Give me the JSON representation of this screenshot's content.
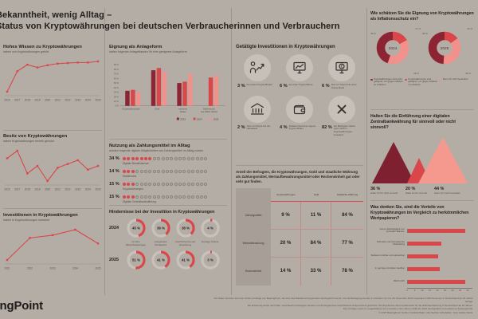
{
  "app": {
    "bg": "#b4ada6",
    "accent": "#d9474b",
    "dark_red": "#8d2433",
    "light_red": "#f0918b"
  },
  "header": {
    "title_line1": "Bekanntheit, wenig Alltag –",
    "title_line2": "Status von Kryptowährungen bei deutschen Verbraucherinnen und Verbrauchern"
  },
  "sections": {
    "wissen": {
      "title": "Hohes Wissen zu Kryptowährungen",
      "subtitle": "haben von Kryptowährungen gehört"
    },
    "besitz": {
      "title": "Besitz von Kryptowährungen",
      "subtitle": "haben Kryptowährungen bereits genutzt"
    },
    "invest": {
      "title": "Investitionen in Kryptowährungen",
      "subtitle": "haben in Kryptowährungen investiert"
    },
    "eignung": {
      "title": "Eignung als Anlageform",
      "subtitle": "halten folgende Anlageklassen für eine geeignete Anlageform"
    },
    "nutzung": {
      "title": "Nutzung als Zahlungsmittel im Alltag",
      "subtitle": "würden folgende digitale Möglichkeiten als Zahlungsmittel im Alltag nutzen"
    },
    "hindernisse": {
      "title": "Hindernisse bei der Investition in Kryptowährungen"
    },
    "kanaele": {
      "title": "Getätigte Investitionen in Kryptowährungen",
      "items": [
        {
          "pct": "3 %",
          "caption": "bei einem Krypto-Broker",
          "icon": "broker-chart-icon"
        },
        {
          "pct": "6 %",
          "caption": "bei einer Krypto-Börse",
          "icon": "exchange-monitor-icon"
        },
        {
          "pct": "6 %",
          "caption": "über ein Depot bei einer Online-Bank",
          "icon": "online-bank-coin-icon"
        },
        {
          "pct": "2 %",
          "caption": "über ein Depot bei der Hausbank",
          "icon": "bank-building-icon"
        },
        {
          "pct": "4 %",
          "caption": "direkter Kauf über eigene Krypto-Wallet",
          "icon": "wallet-icon"
        },
        {
          "pct": "82 %",
          "caption": "der Befragten haben noch nicht in Kryptowährungen investiert",
          "icon": "x-mark-icon"
        }
      ]
    },
    "bewertung": {
      "intro": "Anteil der Befragten, die Kryptowährungen, Gold und staatliche Währung als Zahlungsmittel, Wertaufbewahrungsmittel oder Recheneinheit gut oder sehr gut finden.",
      "columns": [
        "Kryptowährungen",
        "Gold",
        "Staatliche Währung"
      ],
      "rows": [
        {
          "label": "Zahlungsmittel",
          "values": [
            "9 %",
            "11 %",
            "84 %"
          ]
        },
        {
          "label": "Wertaufbewahrung",
          "values": [
            "20 %",
            "84 %",
            "77 %"
          ]
        },
        {
          "label": "Recheneinheit",
          "values": [
            "14 %",
            "33 %",
            "78 %"
          ]
        }
      ]
    },
    "inflation": {
      "title": "Wie schätzen Sie die Eignung von Kryptowährungen als Inflationsschutz ein?",
      "legend": [
        "Kryptowährungen sind nicht geeignet, um gegen Inflation zu schützen",
        "Kryptowährungen sind geeignet, um gegen Inflation zu schützen",
        "Kann ich nicht beurteilen"
      ]
    },
    "cbdc": {
      "title": "Halten Sie die Einführung einer digitalen Zentralbankwährung für sinnvoll oder nicht sinnvoll?",
      "items": [
        {
          "pct": "36 %",
          "label": "Halte ich für nicht sinnvoll"
        },
        {
          "pct": "20 %",
          "label": "Halte ich für sinnvoll"
        },
        {
          "pct": "44 %",
          "label": "Kann ich nicht beurteilen"
        }
      ]
    },
    "vorteile": {
      "title": "Was denken Sie, sind die Vorteile von Kryptowährungen im Vergleich zu herkömmlichen Wertpapieren?"
    }
  },
  "footer": {
    "logo": "BearingPoint",
    "note_lines": [
      "Die Daten beruhen auf einer Online-Umfrage von BearingPoint, die über das Marktforschungsinstitut durchgeführt wurde. Für die Befragung wurden im Zeitraum 21. bis 28. November 2025 insgesamt 2.000 Personen in Deutschland ab 18 Jahren befragt.",
      "Die Erhebung wurde nach Alter, Geschlecht und Region quotiert und die Ergebnisse anschließend entsprechend gewichtet. Die Ergebnisse sind repräsentativ für die Wohnbevölkerung in Deutschland ab 18 Jahren.",
      "Die Umfrage wurde in vergleichbarer Form bereits in den Jahren 2016 bis 2024 durchgeführt und erlaubt so Zeitvergleiche.",
      "© 2025 BearingPoint GmbH, Frankfurt/Main. Alle Rechte vorbehalten. Foto: Adobe Stock."
    ]
  },
  "chart_data": [
    {
      "id": "wissen_line",
      "type": "line",
      "title": "Hohes Wissen zu Kryptowährungen",
      "unit": "%",
      "x": [
        2016,
        2017,
        2018,
        2019,
        2020,
        2021,
        2022,
        2023,
        2024,
        2025
      ],
      "values": [
        35,
        72,
        84,
        79,
        83,
        86,
        87,
        88,
        88,
        90
      ]
    },
    {
      "id": "besitz_line",
      "type": "line",
      "title": "Besitz von Kryptowährungen",
      "unit": "%",
      "x": [
        2016,
        2017,
        2018,
        2019,
        2020,
        2021,
        2022,
        2023,
        2024,
        2025
      ],
      "values": [
        23,
        27,
        15,
        19,
        11,
        18,
        20,
        22,
        17,
        19
      ]
    },
    {
      "id": "invest_line",
      "type": "line",
      "title": "Investitionen in Kryptowährungen",
      "unit": "%",
      "x": [
        2021,
        2022,
        2023,
        2024,
        2025
      ],
      "values": [
        8,
        12,
        12.5,
        13.5,
        11
      ]
    },
    {
      "id": "eignung_bars",
      "type": "bar",
      "title": "Eignung als Anlageform",
      "ylim": [
        0,
        90
      ],
      "unit": "%",
      "categories": [
        "Kryptowährungen",
        "Gold",
        "einzelne Aktien",
        "Aktienfonds wie MSCI World"
      ],
      "cat_lines": [
        [
          "Kryptowährungen"
        ],
        [
          "Gold"
        ],
        [
          "einzelne",
          "Aktien"
        ],
        [
          "Aktienfonds",
          "wie MSCI World"
        ]
      ],
      "series": [
        {
          "name": "2023",
          "values": [
            33,
            78,
            50,
            null
          ]
        },
        {
          "name": "2024",
          "values": [
            35,
            83,
            53,
            62
          ]
        },
        {
          "name": "2025",
          "values": [
            30,
            75,
            70,
            66
          ]
        }
      ]
    },
    {
      "id": "nutzung_dots",
      "type": "pictogram",
      "dots_total": 20,
      "unit": "%",
      "rows": [
        {
          "label": "Digitale Bezahldienste",
          "pct": 34
        },
        {
          "label": "Stablecoins",
          "pct": 14
        },
        {
          "label": "Kryptowährungen",
          "pct": 15
        },
        {
          "label": "Digitale Zentralbankwährung",
          "pct": 15
        }
      ]
    },
    {
      "id": "hindernisse_rings",
      "type": "donut-grid",
      "unit": "%",
      "categories": [
        "zu hohe Wertschwankungen",
        "mangelndes Verständnis",
        "Unsicherheit bei der Verwahrung",
        "Sonstige Gründe"
      ],
      "rows": [
        {
          "year": "2024",
          "values": [
            45,
            39,
            38,
            4
          ]
        },
        {
          "year": "2025",
          "values": [
            51,
            41,
            41,
            3
          ]
        }
      ]
    },
    {
      "id": "rating_table",
      "type": "table",
      "columns": [
        "",
        "Kryptowährungen",
        "Gold",
        "Staatliche Währung"
      ],
      "rows": [
        [
          "Zahlungsmittel",
          "9 %",
          "11 %",
          "84 %"
        ],
        [
          "Wertaufbewahrung",
          "20 %",
          "84 %",
          "77 %"
        ],
        [
          "Recheneinheit",
          "14 %",
          "33 %",
          "78 %"
        ]
      ]
    },
    {
      "id": "inflation_donuts",
      "type": "pie",
      "unit": "%",
      "years": [
        {
          "label": "2024",
          "segments": [
            {
              "name": "nicht geeignet",
              "value": 45
            },
            {
              "name": "geeignet",
              "value": 17
            },
            {
              "name": "kann ich nicht beurteilen",
              "value": 38
            }
          ]
        },
        {
          "label": "2025",
          "segments": [
            {
              "name": "nicht geeignet",
              "value": 49
            },
            {
              "name": "geeignet",
              "value": 15
            },
            {
              "name": "kann ich nicht beurteilen",
              "value": 36
            }
          ]
        }
      ]
    },
    {
      "id": "cbdc_triangles",
      "type": "area",
      "unit": "%",
      "categories": [
        "Halte ich für nicht sinnvoll",
        "Halte ich für sinnvoll",
        "Kann ich nicht beurteilen"
      ],
      "values": [
        36,
        20,
        44
      ]
    },
    {
      "id": "vorteile_barh",
      "type": "bar",
      "orientation": "horizontal",
      "xlim": [
        0,
        40
      ],
      "xticks": [
        0,
        5,
        10,
        15,
        20,
        25,
        30,
        35,
        40
      ],
      "unit": "%",
      "categories": [
        "Keine Abhängigkeit von zentralen Banken",
        "Schnelle und transparente Abwicklung",
        "Weltweit nutzbar und einsetzbar",
        "In geringen Anteilen kaufbar",
        "Weiß nicht"
      ],
      "values": [
        38,
        22,
        20,
        21,
        38
      ]
    }
  ]
}
